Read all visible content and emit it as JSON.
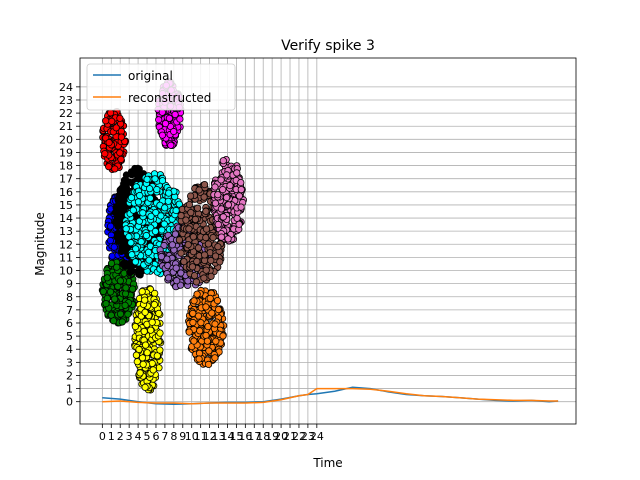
{
  "chart_data": {
    "type": "line",
    "title": "Verify spike 3",
    "xlabel": "Time",
    "ylabel": "Magnitude",
    "xlim": [
      -2.5,
      53
    ],
    "ylim": [
      -1.7,
      26.2
    ],
    "xticks": [
      0,
      1,
      2,
      3,
      4,
      5,
      6,
      7,
      8,
      9,
      10,
      11,
      12,
      13,
      14,
      15,
      16,
      17,
      18,
      19,
      20,
      21,
      22,
      23,
      24
    ],
    "xtick_labels": [
      "0",
      "1",
      "2",
      "3",
      "4",
      "5",
      "6",
      "7",
      "8",
      "9",
      "10",
      "11",
      "12",
      "13",
      "14",
      "15",
      "16",
      "17",
      "18",
      "19",
      "20",
      "21",
      "22",
      "23",
      "24"
    ],
    "yticks": [
      0,
      1,
      2,
      3,
      4,
      5,
      6,
      7,
      8,
      9,
      10,
      11,
      12,
      13,
      14,
      15,
      16,
      17,
      18,
      19,
      20,
      21,
      22,
      23,
      24
    ],
    "ytick_labels": [
      "0",
      "1",
      "2",
      "3",
      "4",
      "5",
      "6",
      "7",
      "8",
      "9",
      "10",
      "11",
      "12",
      "13",
      "14",
      "15",
      "16",
      "17",
      "18",
      "19",
      "20",
      "21",
      "22",
      "23",
      "24"
    ],
    "grid": true,
    "legend_position": "top-left",
    "series": [
      {
        "name": "original",
        "color": "#1f77b4",
        "x": [
          0,
          2,
          4,
          6,
          8,
          10,
          12,
          14,
          16,
          18,
          20,
          22,
          23,
          24,
          26,
          28,
          30,
          32,
          34,
          36,
          38,
          40,
          42,
          44,
          46,
          48,
          50,
          51
        ],
        "y": [
          0.3,
          0.2,
          0.0,
          -0.15,
          -0.2,
          -0.15,
          -0.1,
          -0.05,
          -0.05,
          0.0,
          0.2,
          0.45,
          0.55,
          0.6,
          0.8,
          1.1,
          1.0,
          0.75,
          0.55,
          0.45,
          0.4,
          0.3,
          0.2,
          0.1,
          0.05,
          0.1,
          0.0,
          0.05
        ]
      },
      {
        "name": "reconstructed",
        "color": "#ff7f0e",
        "x": [
          0,
          2,
          4,
          6,
          8,
          10,
          12,
          14,
          16,
          18,
          20,
          22,
          23,
          24,
          26,
          28,
          30,
          32,
          34,
          36,
          38,
          40,
          42,
          44,
          46,
          48,
          50,
          51
        ],
        "y": [
          0.0,
          0.05,
          -0.05,
          -0.1,
          -0.1,
          -0.15,
          -0.1,
          -0.1,
          -0.1,
          -0.05,
          0.15,
          0.45,
          0.55,
          1.0,
          1.0,
          1.0,
          0.95,
          0.8,
          0.6,
          0.45,
          0.4,
          0.3,
          0.2,
          0.15,
          0.1,
          0.1,
          0.05,
          0.05
        ]
      }
    ],
    "clusters": [
      {
        "color": "#ff0000",
        "x_range": [
          0,
          2.6
        ],
        "y_range": [
          17.6,
          22.2
        ],
        "n": 180
      },
      {
        "color": "#0000ff",
        "x_range": [
          0.6,
          3.4
        ],
        "y_range": [
          10.0,
          16.2
        ],
        "n": 230
      },
      {
        "color": "#008000",
        "x_range": [
          0,
          3.6
        ],
        "y_range": [
          6.0,
          10.8
        ],
        "n": 260
      },
      {
        "color": "#000000",
        "x_range": [
          1.4,
          6.4
        ],
        "y_range": [
          9.6,
          17.8
        ],
        "n": 330
      },
      {
        "color": "#ffff00",
        "x_range": [
          3.6,
          6.6
        ],
        "y_range": [
          0.8,
          8.8
        ],
        "n": 250
      },
      {
        "color": "#ff00ff",
        "x_range": [
          6.2,
          8.8
        ],
        "y_range": [
          19.4,
          24.4
        ],
        "n": 190
      },
      {
        "color": "#00ffff",
        "x_range": [
          2.6,
          9.0
        ],
        "y_range": [
          9.6,
          17.4
        ],
        "n": 330
      },
      {
        "color": "#9467bd",
        "x_range": [
          6.4,
          12.0
        ],
        "y_range": [
          8.6,
          13.6
        ],
        "n": 230
      },
      {
        "color": "#8c564b",
        "x_range": [
          8.6,
          13.6
        ],
        "y_range": [
          9.0,
          16.6
        ],
        "n": 260
      },
      {
        "color": "#ff7f0e",
        "x_range": [
          9.6,
          13.6
        ],
        "y_range": [
          2.8,
          8.6
        ],
        "n": 250
      },
      {
        "color": "#e377c2",
        "x_range": [
          12.4,
          15.8
        ],
        "y_range": [
          12.2,
          18.6
        ],
        "n": 230
      }
    ]
  }
}
